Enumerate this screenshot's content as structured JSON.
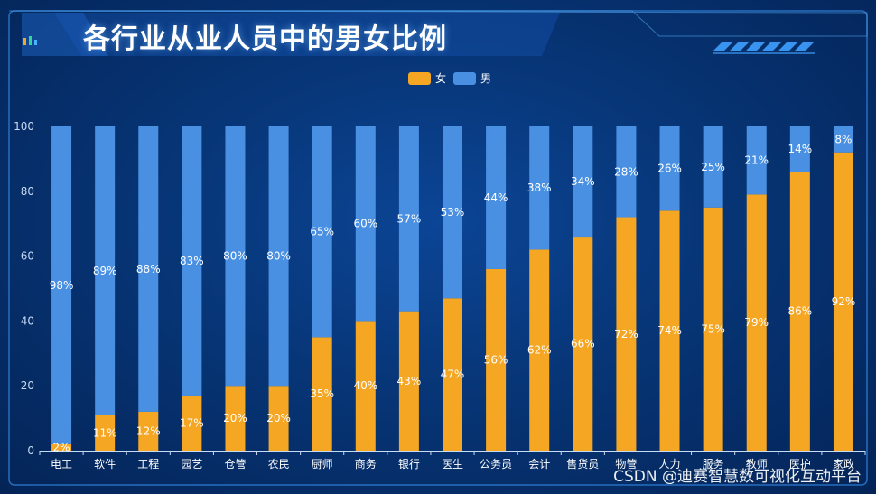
{
  "title": "各行业从业人员中的男女比例",
  "watermark": "CSDN @迪赛智慧数可视化互动平台",
  "colors": {
    "female": "#f5a623",
    "male": "#4a90e2",
    "label": "#ffffff",
    "axis": "#c9dcf5"
  },
  "chart_data": {
    "type": "bar",
    "stacked": true,
    "title": "各行业从业人员中的男女比例",
    "categories": [
      "电工",
      "软件",
      "工程",
      "园艺",
      "仓管",
      "农民",
      "厨师",
      "商务",
      "银行",
      "医生",
      "公务员",
      "会计",
      "售货员",
      "物管",
      "人力",
      "服务",
      "教师",
      "医护",
      "家政"
    ],
    "series": [
      {
        "name": "女",
        "color": "#f5a623",
        "values": [
          2,
          11,
          12,
          17,
          20,
          20,
          35,
          40,
          43,
          47,
          56,
          62,
          66,
          72,
          74,
          75,
          79,
          86,
          92
        ],
        "labels": [
          "2%",
          "11%",
          "12%",
          "17%",
          "20%",
          "20%",
          "35%",
          "40%",
          "43%",
          "47%",
          "56%",
          "62%",
          "66%",
          "72%",
          "74%",
          "75%",
          "79%",
          "86%",
          "92%"
        ]
      },
      {
        "name": "男",
        "color": "#4a90e2",
        "values": [
          98,
          89,
          88,
          83,
          80,
          80,
          65,
          60,
          57,
          53,
          44,
          38,
          34,
          28,
          26,
          25,
          21,
          14,
          8
        ],
        "labels": [
          "98%",
          "89%",
          "88%",
          "83%",
          "80%",
          "80%",
          "65%",
          "60%",
          "57%",
          "53%",
          "44%",
          "38%",
          "34%",
          "28%",
          "26%",
          "25%",
          "21%",
          "14%",
          "8%"
        ]
      }
    ],
    "ylim": [
      0,
      100
    ],
    "yticks": [
      "0",
      "20",
      "40",
      "60",
      "80",
      "100"
    ],
    "legend": [
      "女",
      "男"
    ],
    "legend_position": "top-center"
  }
}
